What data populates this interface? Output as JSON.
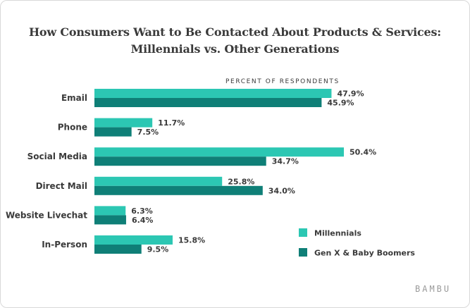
{
  "chart_data": {
    "type": "bar",
    "orientation": "horizontal",
    "title_line1": "How Consumers Want to Be Contacted About Products & Services:",
    "title_line2": "Millennials vs. Other Generations",
    "axis_label": "PERCENT OF RESPONDENTS",
    "categories": [
      "Email",
      "Phone",
      "Social Media",
      "Direct Mail",
      "Website Livechat",
      "In-Person"
    ],
    "series": [
      {
        "name": "Millennials",
        "color": "#2cc7b3",
        "values": [
          47.9,
          11.7,
          50.4,
          25.8,
          6.3,
          15.8
        ],
        "labels": [
          "47.9%",
          "11.7%",
          "50.4%",
          "25.8%",
          "6.3%",
          "15.8%"
        ]
      },
      {
        "name": "Gen X & Baby Boomers",
        "color": "#0f7f77",
        "values": [
          45.9,
          7.5,
          34.7,
          34.0,
          6.4,
          9.5
        ],
        "labels": [
          "45.9%",
          "7.5%",
          "34.7%",
          "34.0%",
          "6.4%",
          "9.5%"
        ]
      }
    ],
    "xlim": [
      0,
      50.4
    ],
    "grid": false,
    "legend_position": "bottom-right"
  },
  "brand": "BAMBU"
}
